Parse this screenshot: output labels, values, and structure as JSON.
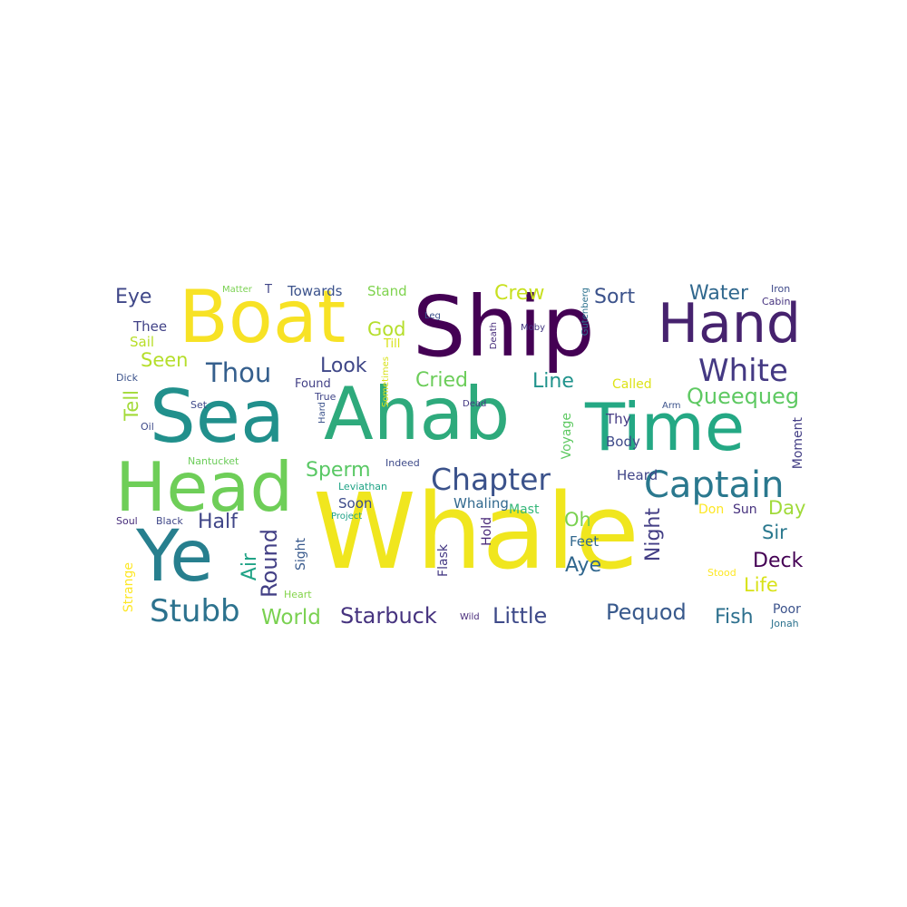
{
  "words": [
    {
      "text": "Whale",
      "color": "#f0e61e"
    },
    {
      "text": "Ahab",
      "color": "#2eaa7c"
    },
    {
      "text": "Ship",
      "color": "#440154"
    },
    {
      "text": "Sea",
      "color": "#21908c"
    },
    {
      "text": "Time",
      "color": "#24a884"
    },
    {
      "text": "Boat",
      "color": "#f7e225"
    },
    {
      "text": "Head",
      "color": "#6ece58"
    },
    {
      "text": "Hand",
      "color": "#46226e"
    },
    {
      "text": "Ye",
      "color": "#277f8e"
    },
    {
      "text": "Captain",
      "color": "#2a788e"
    },
    {
      "text": "Chapter",
      "color": "#3b528b"
    },
    {
      "text": "White",
      "color": "#443983"
    },
    {
      "text": "Stubb",
      "color": "#2c728e"
    },
    {
      "text": "Thou",
      "color": "#355f8d"
    },
    {
      "text": "Starbuck",
      "color": "#46337f"
    },
    {
      "text": "Queequeg",
      "color": "#5ec962"
    },
    {
      "text": "World",
      "color": "#7ad151"
    },
    {
      "text": "Little",
      "color": "#3e4a89"
    },
    {
      "text": "Pequod",
      "color": "#38598c"
    },
    {
      "text": "Sperm",
      "color": "#59c864"
    },
    {
      "text": "Cried",
      "color": "#6ccd5a"
    },
    {
      "text": "Round",
      "color": "#423f85"
    },
    {
      "text": "Night",
      "color": "#433e85"
    },
    {
      "text": "Water",
      "color": "#31688e"
    },
    {
      "text": "Look",
      "color": "#3f4788"
    },
    {
      "text": "Half",
      "color": "#404688"
    },
    {
      "text": "Deck",
      "color": "#440154"
    },
    {
      "text": "Fish",
      "color": "#2d708e"
    },
    {
      "text": "Crew",
      "color": "#c8e020"
    },
    {
      "text": "Air",
      "color": "#20a386"
    },
    {
      "text": "Aye",
      "color": "#31678e"
    },
    {
      "text": "Line",
      "color": "#20938c"
    },
    {
      "text": "Sort",
      "color": "#3b528b"
    },
    {
      "text": "Eye",
      "color": "#3f4788"
    },
    {
      "text": "Day",
      "color": "#a0da39"
    },
    {
      "text": "Life",
      "color": "#d8e219"
    },
    {
      "text": "Oh",
      "color": "#7ad151"
    },
    {
      "text": "Sir",
      "color": "#2a788e"
    },
    {
      "text": "God",
      "color": "#b5de2b"
    },
    {
      "text": "Seen",
      "color": "#b5de2b"
    },
    {
      "text": "Tell",
      "color": "#a2da37"
    },
    {
      "text": "Thee",
      "color": "#414287"
    },
    {
      "text": "Sail",
      "color": "#b8de29"
    },
    {
      "text": "Towards",
      "color": "#3b528b"
    },
    {
      "text": "Stand",
      "color": "#7fd34e"
    },
    {
      "text": "Whaling",
      "color": "#31688e"
    },
    {
      "text": "Soon",
      "color": "#3e4c8a"
    },
    {
      "text": "Mast",
      "color": "#35b779"
    },
    {
      "text": "Body",
      "color": "#3e4a89"
    },
    {
      "text": "Heard",
      "color": "#404588"
    },
    {
      "text": "Feet",
      "color": "#31688e"
    },
    {
      "text": "Thy",
      "color": "#443983"
    },
    {
      "text": "Called",
      "color": "#dde318"
    },
    {
      "text": "Sun",
      "color": "#46317e"
    },
    {
      "text": "Don",
      "color": "#fde725"
    },
    {
      "text": "Poor",
      "color": "#3b528b"
    },
    {
      "text": "Jonah",
      "color": "#2c728e"
    },
    {
      "text": "Moment",
      "color": "#433e85"
    },
    {
      "text": "Flask",
      "color": "#443983"
    },
    {
      "text": "Hold",
      "color": "#482878"
    },
    {
      "text": "Voyage",
      "color": "#5ec962"
    },
    {
      "text": "Sight",
      "color": "#38598c"
    },
    {
      "text": "Strange",
      "color": "#fde725"
    },
    {
      "text": "Heart",
      "color": "#84d44b"
    },
    {
      "text": "Wild",
      "color": "#472a7a"
    },
    {
      "text": "Stood",
      "color": "#fde725"
    },
    {
      "text": "Found",
      "color": "#424086"
    },
    {
      "text": "True",
      "color": "#404588"
    },
    {
      "text": "Dick",
      "color": "#3b528b"
    },
    {
      "text": "Set",
      "color": "#3e4989"
    },
    {
      "text": "Oil",
      "color": "#3e4a89"
    },
    {
      "text": "Nantucket",
      "color": "#6ccd5a"
    },
    {
      "text": "Soul",
      "color": "#472d7b"
    },
    {
      "text": "Black",
      "color": "#3f4788"
    },
    {
      "text": "Project",
      "color": "#1fa187"
    },
    {
      "text": "Leviathan",
      "color": "#20a386"
    },
    {
      "text": "Indeed",
      "color": "#3e4a89"
    },
    {
      "text": "Dead",
      "color": "#443983"
    },
    {
      "text": "Leg",
      "color": "#3b528b"
    },
    {
      "text": "Matter",
      "color": "#7ad151"
    },
    {
      "text": "T",
      "color": "#404588"
    },
    {
      "text": "Iron",
      "color": "#3e4989"
    },
    {
      "text": "Cabin",
      "color": "#46337f"
    },
    {
      "text": "Arm",
      "color": "#3b528b"
    },
    {
      "text": "Moby",
      "color": "#443983"
    },
    {
      "text": "Till",
      "color": "#d8e219"
    },
    {
      "text": "Hard",
      "color": "#3b528b"
    },
    {
      "text": "Sometimes",
      "color": "#d8e219"
    },
    {
      "text": "Death",
      "color": "#472d7b"
    },
    {
      "text": "Gutenberg",
      "color": "#2c728e"
    }
  ]
}
